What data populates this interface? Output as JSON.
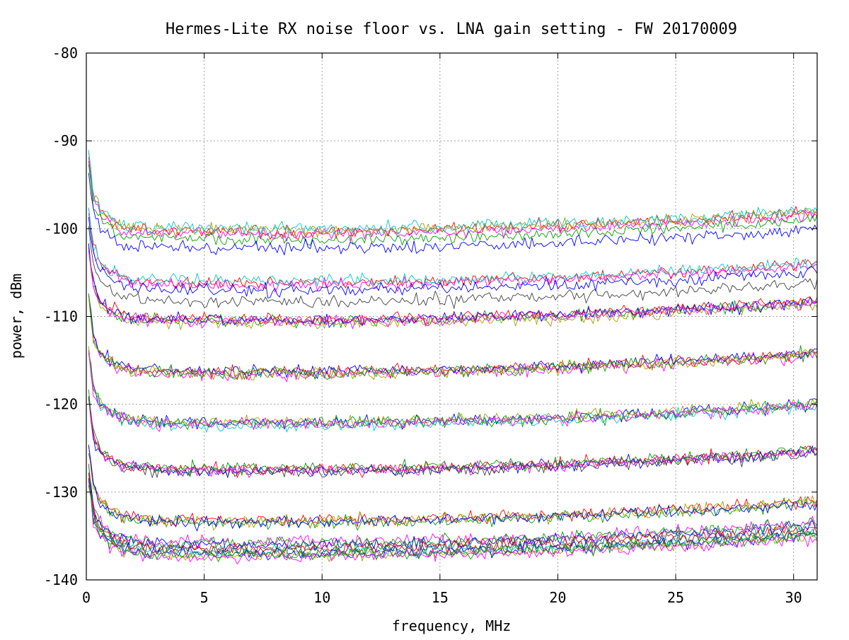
{
  "chart_data": {
    "type": "line",
    "title": "Hermes-Lite RX noise floor vs. LNA gain setting - FW 20170009",
    "xlabel": "frequency, MHz",
    "ylabel": "power, dBm",
    "xlim": [
      0,
      31
    ],
    "ylim": [
      -140,
      -80
    ],
    "xticks": [
      0,
      5,
      10,
      15,
      20,
      25,
      30
    ],
    "xtick_labels": [
      "0",
      "5",
      "10",
      "15",
      "20",
      "25",
      "30"
    ],
    "yticks": [
      -140,
      -130,
      -120,
      -110,
      -100,
      -90,
      -80
    ],
    "ytick_labels": [
      "-140",
      "-130",
      "-120",
      "-110",
      "-100",
      "-90",
      "-80"
    ],
    "grid": true,
    "legend": "none",
    "noise_dB": 0.35,
    "curve_shape": {
      "x": [
        0.1,
        0.3,
        0.6,
        1.0,
        1.5,
        2.0,
        3.0,
        5.0,
        8.0,
        10.0,
        15.0,
        20.0,
        25.0,
        28.0,
        31.0
      ],
      "offset_dB": [
        8.5,
        4.0,
        2.2,
        1.3,
        0.6,
        0.3,
        0.1,
        0.0,
        0.0,
        0.0,
        0.2,
        0.6,
        1.2,
        1.6,
        2.2
      ]
    },
    "palette": [
      "#ff0000",
      "#00a000",
      "#0000ff",
      "#ff00ff",
      "#00c8c8",
      "#a0a000",
      "#404040",
      "#2020c0",
      "#c00000",
      "#008000"
    ],
    "series": [
      {
        "floor": -100.3,
        "color": "#ff0000"
      },
      {
        "floor": -100.6,
        "color": "#ff00ff"
      },
      {
        "floor": -100.2,
        "color": "#a0a000"
      },
      {
        "floor": -100.0,
        "color": "#00c8c8"
      },
      {
        "floor": -101.2,
        "color": "#00a000"
      },
      {
        "floor": -102.2,
        "color": "#0000ff"
      },
      {
        "floor": -106.2,
        "color": "#ff0000"
      },
      {
        "floor": -106.4,
        "color": "#ff00ff"
      },
      {
        "floor": -106.0,
        "color": "#00c8c8"
      },
      {
        "floor": -107.0,
        "color": "#0000ff"
      },
      {
        "floor": -108.3,
        "color": "#404040"
      },
      {
        "floor": -110.5,
        "color": "#00a000"
      },
      {
        "floor": -110.8,
        "color": "#a0a000"
      },
      {
        "floor": -110.3,
        "color": "#ff0000"
      },
      {
        "floor": -110.4,
        "color": "#0000ff"
      },
      {
        "floor": -110.6,
        "color": "#ff00ff"
      },
      {
        "floor": -116.3,
        "color": "#ff0000"
      },
      {
        "floor": -116.6,
        "color": "#ff00ff"
      },
      {
        "floor": -116.2,
        "color": "#0000ff"
      },
      {
        "floor": -116.4,
        "color": "#00a000"
      },
      {
        "floor": -116.5,
        "color": "#a0a000"
      },
      {
        "floor": -122.1,
        "color": "#0000ff"
      },
      {
        "floor": -122.4,
        "color": "#00c8c8"
      },
      {
        "floor": -122.2,
        "color": "#00a000"
      },
      {
        "floor": -122.0,
        "color": "#a0a000"
      },
      {
        "floor": -122.3,
        "color": "#ff00ff"
      },
      {
        "floor": -127.4,
        "color": "#ff0000"
      },
      {
        "floor": -127.6,
        "color": "#0000ff"
      },
      {
        "floor": -127.3,
        "color": "#00a000"
      },
      {
        "floor": -127.5,
        "color": "#ff00ff"
      },
      {
        "floor": -127.7,
        "color": "#404040"
      },
      {
        "floor": -133.2,
        "color": "#ff0000"
      },
      {
        "floor": -133.5,
        "color": "#00a000"
      },
      {
        "floor": -133.3,
        "color": "#a0a000"
      },
      {
        "floor": -133.4,
        "color": "#0000ff"
      },
      {
        "floor": -135.7,
        "color": "#ff00ff"
      },
      {
        "floor": -136.0,
        "color": "#0000ff"
      },
      {
        "floor": -135.8,
        "color": "#00a000"
      },
      {
        "floor": -136.4,
        "color": "#ff0000"
      },
      {
        "floor": -136.8,
        "color": "#00c8c8"
      },
      {
        "floor": -137.0,
        "color": "#0000ff"
      },
      {
        "floor": -137.2,
        "color": "#a0a000"
      },
      {
        "floor": -137.4,
        "color": "#ff00ff"
      },
      {
        "floor": -136.6,
        "color": "#404040"
      },
      {
        "floor": -137.1,
        "color": "#00a000"
      }
    ]
  }
}
